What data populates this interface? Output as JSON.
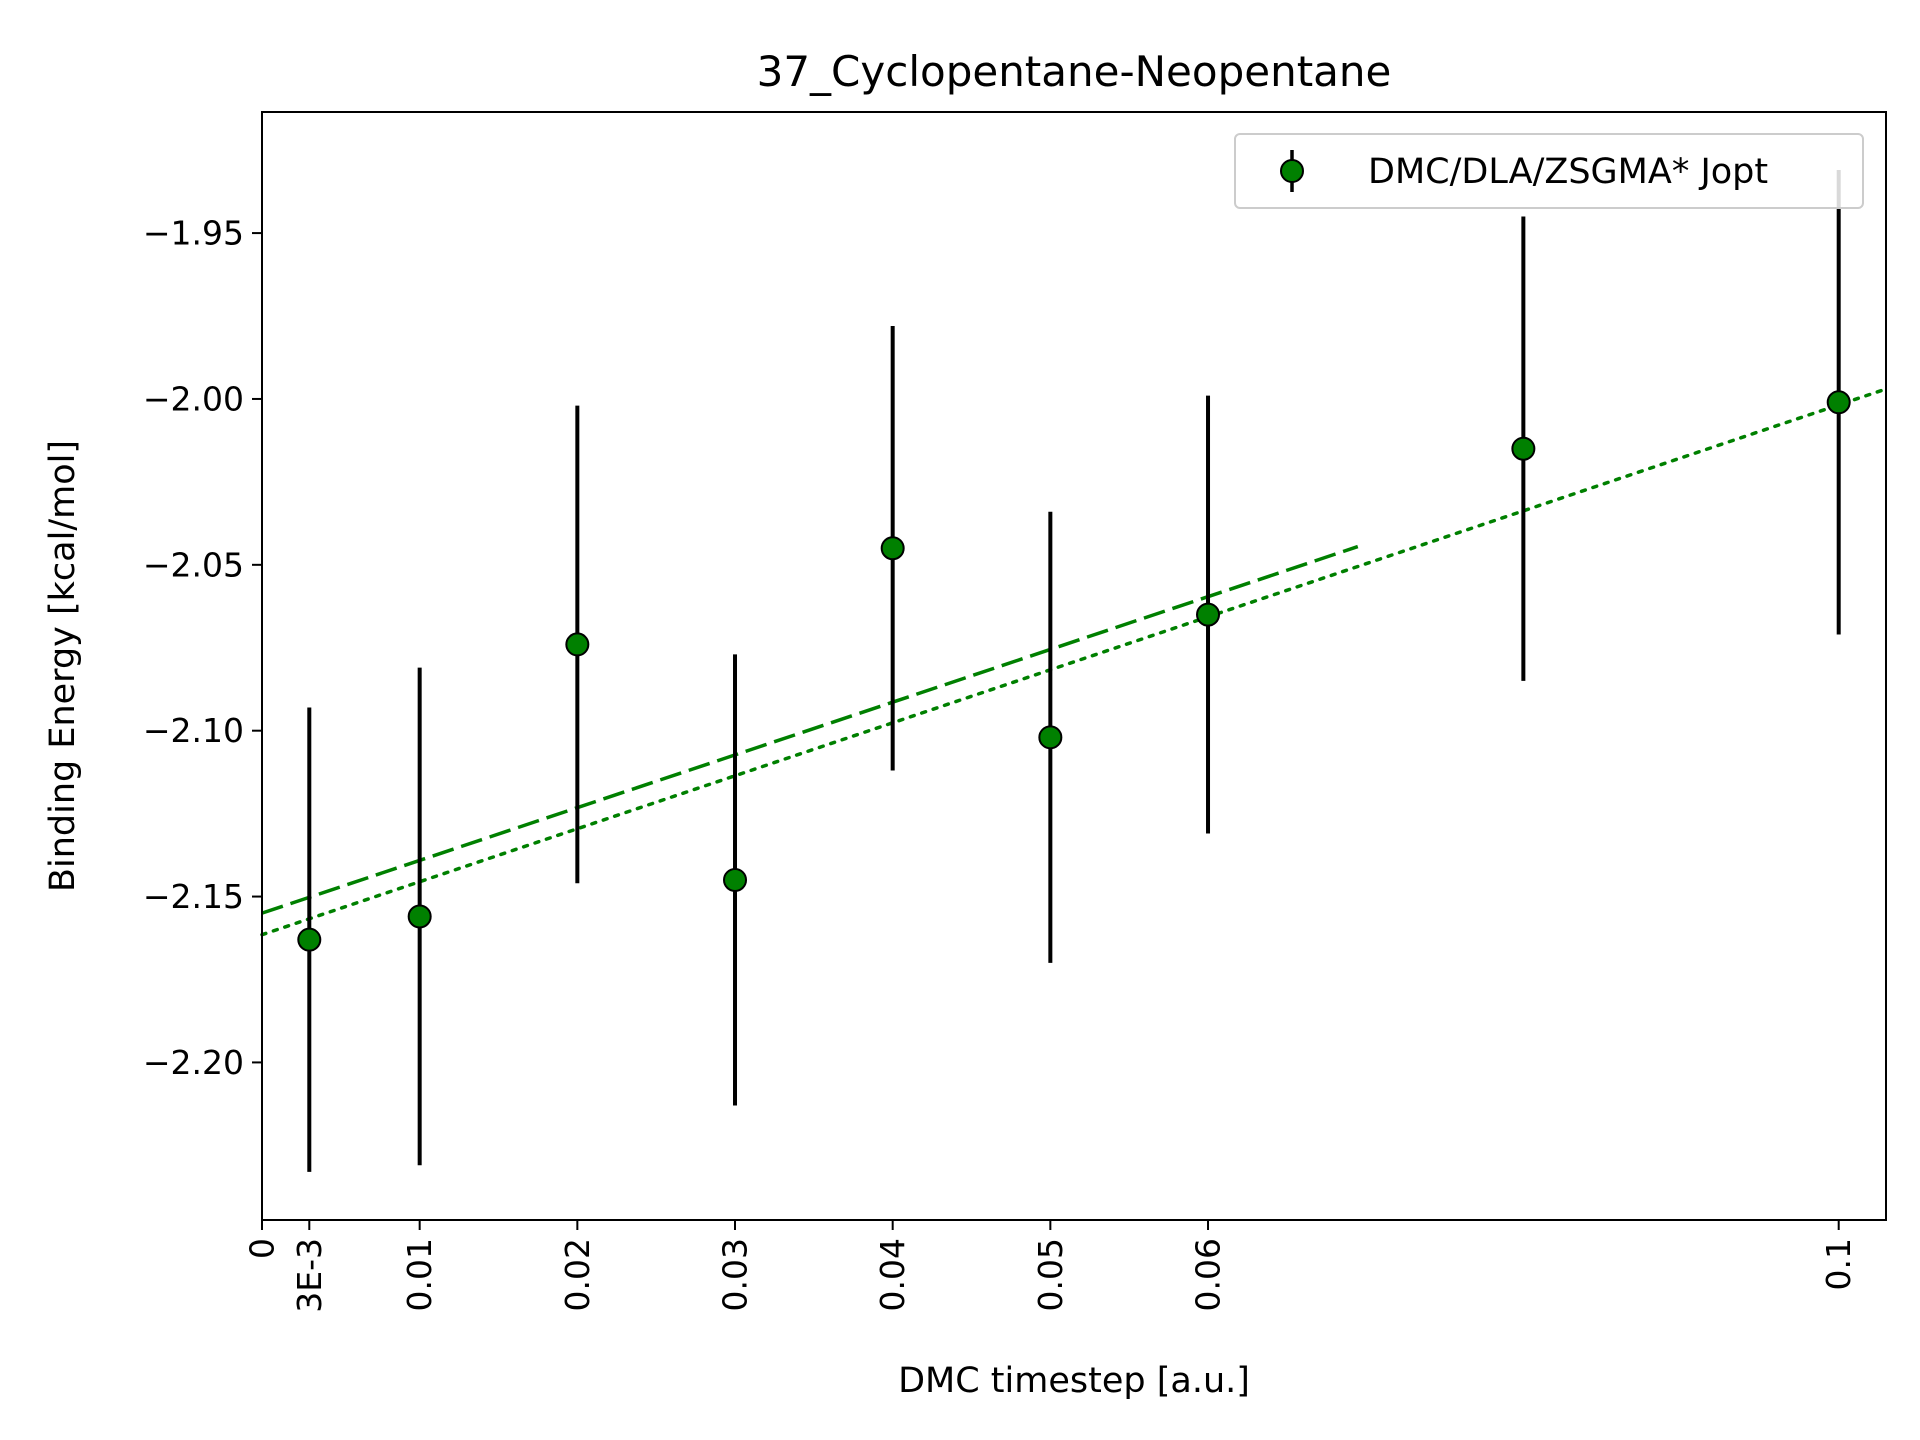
{
  "chart_data": {
    "type": "scatter",
    "title": "37_Cyclopentane-Neopentane",
    "xlabel": "DMC timestep [a.u.]",
    "ylabel": "Binding Energy [kcal/mol]",
    "xlim": [
      0,
      0.103
    ],
    "ylim": [
      -2.2475,
      -1.9135
    ],
    "x_ticks": [
      {
        "value": 0,
        "label": "0"
      },
      {
        "value": 0.003,
        "label": "3E-3"
      },
      {
        "value": 0.01,
        "label": "0.01"
      },
      {
        "value": 0.02,
        "label": "0.02"
      },
      {
        "value": 0.03,
        "label": "0.03"
      },
      {
        "value": 0.04,
        "label": "0.04"
      },
      {
        "value": 0.05,
        "label": "0.05"
      },
      {
        "value": 0.06,
        "label": "0.06"
      },
      {
        "value": 0.1,
        "label": "0.1"
      }
    ],
    "y_ticks": [
      {
        "value": -1.95,
        "label": "−1.95"
      },
      {
        "value": -2.0,
        "label": "−2.00"
      },
      {
        "value": -2.05,
        "label": "−2.05"
      },
      {
        "value": -2.1,
        "label": "−2.10"
      },
      {
        "value": -2.15,
        "label": "−2.15"
      },
      {
        "value": -2.2,
        "label": "−2.20"
      }
    ],
    "grid": false,
    "legend_position": "top-right",
    "series": [
      {
        "name": "DMC/DLA/ZSGMA* Jopt",
        "color": "#008000",
        "edge_color": "#000000",
        "errorbar_color": "#000000",
        "points": [
          {
            "x": 0.003,
            "y": -2.163,
            "err": 0.07
          },
          {
            "x": 0.01,
            "y": -2.156,
            "err": 0.075
          },
          {
            "x": 0.02,
            "y": -2.074,
            "err": 0.072
          },
          {
            "x": 0.03,
            "y": -2.145,
            "err": 0.068
          },
          {
            "x": 0.04,
            "y": -2.045,
            "err": 0.067
          },
          {
            "x": 0.05,
            "y": -2.102,
            "err": 0.068
          },
          {
            "x": 0.06,
            "y": -2.065,
            "err": 0.066
          },
          {
            "x": 0.08,
            "y": -2.015,
            "err": 0.07
          },
          {
            "x": 0.1,
            "y": -2.001,
            "err": 0.07
          }
        ]
      }
    ],
    "fit_lines": [
      {
        "style": "dashed",
        "color": "#008000",
        "x": [
          0,
          0.0695
        ],
        "y": [
          -2.155,
          -2.0445
        ]
      },
      {
        "style": "dotted",
        "color": "#008000",
        "x": [
          0,
          0.103
        ],
        "y": [
          -2.1615,
          -1.997
        ]
      }
    ]
  }
}
